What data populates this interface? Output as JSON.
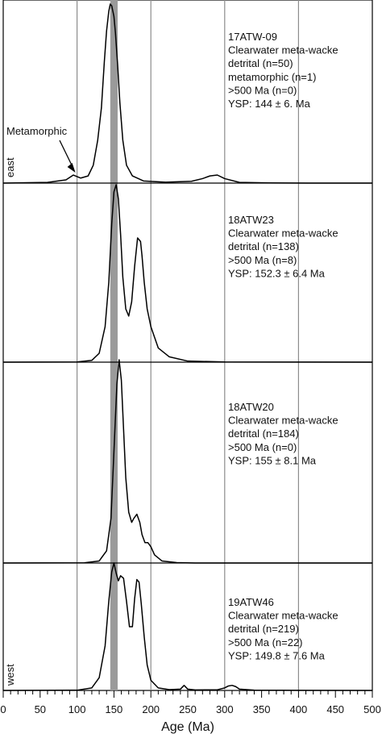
{
  "chart_data": {
    "type": "line",
    "xlabel": "Age (Ma)",
    "xlim": [
      0,
      500
    ],
    "x_ticks": [
      "0",
      "50",
      "100",
      "150",
      "200",
      "250",
      "300",
      "350",
      "400",
      "450",
      "500"
    ],
    "vertical_gridlines": [
      100,
      200,
      300,
      400
    ],
    "highlight_band": [
      145,
      155
    ],
    "side_labels": {
      "top": "east",
      "bottom": "west"
    },
    "annotation": {
      "text": "Metamorphic",
      "x": 100
    },
    "panels": [
      {
        "sample": "17ATW-09",
        "lines": [
          "17ATW-09",
          "Clearwater meta-wacke",
          "detrital (n=50)",
          "metamorphic (n=1)",
          ">500 Ma (n=0)",
          "YSP: 144 ± 6. Ma"
        ],
        "x": [
          0,
          60,
          85,
          95,
          105,
          115,
          122,
          128,
          133,
          137,
          140,
          143,
          145,
          147,
          150,
          152,
          155,
          158,
          162,
          167,
          175,
          190,
          220,
          255,
          270,
          280,
          290,
          300,
          320,
          360,
          420,
          500
        ],
        "y": [
          0,
          0.004,
          0.018,
          0.045,
          0.028,
          0.04,
          0.1,
          0.24,
          0.42,
          0.68,
          0.85,
          0.96,
          1.0,
          0.99,
          0.93,
          0.84,
          0.66,
          0.45,
          0.24,
          0.1,
          0.04,
          0.012,
          0.005,
          0.01,
          0.025,
          0.04,
          0.045,
          0.025,
          0.004,
          0.001,
          0,
          0
        ]
      },
      {
        "sample": "18ATW23",
        "lines": [
          "18ATW23",
          "Clearwater meta-wacke",
          "detrital (n=138)",
          ">500 Ma (n=8)",
          "YSP: 152.3 ± 6.4 Ma"
        ],
        "x": [
          0,
          100,
          120,
          130,
          138,
          143,
          147,
          150,
          153,
          156,
          159,
          162,
          166,
          170,
          174,
          178,
          182,
          186,
          188,
          191,
          195,
          200,
          210,
          225,
          250,
          300,
          500
        ],
        "y": [
          0,
          0.001,
          0.01,
          0.05,
          0.2,
          0.45,
          0.78,
          0.96,
          1.0,
          0.92,
          0.72,
          0.48,
          0.3,
          0.26,
          0.34,
          0.54,
          0.7,
          0.68,
          0.6,
          0.45,
          0.3,
          0.2,
          0.08,
          0.03,
          0.006,
          0.001,
          0
        ]
      },
      {
        "sample": "18ATW20",
        "lines": [
          "18ATW20",
          "Clearwater meta-wacke",
          "detrital (n=184)",
          ">500 Ma (n=0)",
          "YSP: 155 ± 8.1 Ma"
        ],
        "x": [
          0,
          110,
          130,
          140,
          146,
          150,
          154,
          157,
          160,
          163,
          166,
          170,
          174,
          177,
          181,
          185,
          188,
          192,
          196,
          200,
          205,
          215,
          235,
          260,
          300,
          500
        ],
        "y": [
          0,
          0.001,
          0.01,
          0.06,
          0.22,
          0.55,
          0.88,
          1.0,
          0.9,
          0.66,
          0.42,
          0.25,
          0.2,
          0.22,
          0.24,
          0.2,
          0.14,
          0.1,
          0.1,
          0.08,
          0.04,
          0.01,
          0.002,
          0,
          0,
          0
        ]
      },
      {
        "sample": "19ATW46",
        "lines": [
          "19ATW46",
          "Clearwater meta-wacke",
          "detrital (n=219)",
          ">500 Ma (n=22)",
          "YSP: 149.8 ± 7.6 Ma"
        ],
        "x": [
          0,
          100,
          120,
          130,
          138,
          143,
          147,
          150,
          153,
          156,
          159,
          163,
          167,
          171,
          175,
          178,
          181,
          184,
          187,
          191,
          195,
          200,
          210,
          225,
          240,
          245,
          250,
          260,
          290,
          300,
          305,
          310,
          315,
          320,
          340,
          500
        ],
        "y": [
          0,
          0.002,
          0.02,
          0.1,
          0.35,
          0.7,
          0.93,
          1.0,
          0.92,
          0.86,
          0.9,
          0.88,
          0.7,
          0.5,
          0.5,
          0.72,
          0.87,
          0.85,
          0.68,
          0.42,
          0.2,
          0.08,
          0.02,
          0.006,
          0.01,
          0.04,
          0.01,
          0.004,
          0.005,
          0.02,
          0.035,
          0.04,
          0.03,
          0.01,
          0.002,
          0
        ]
      }
    ]
  }
}
